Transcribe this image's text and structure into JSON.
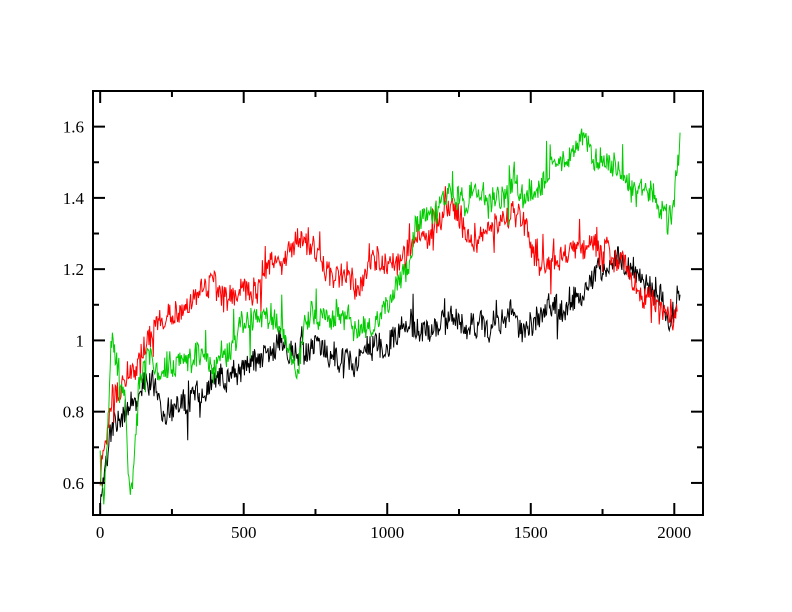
{
  "figure": {
    "background_color": "#ffffff",
    "frame_color": "#000000"
  },
  "chart_data": {
    "type": "line",
    "title": "",
    "xlabel": "",
    "ylabel": "",
    "grid": false,
    "legend": "none",
    "frame": "box-with-inward-ticks-all-sides",
    "x_range": [
      -25,
      2100
    ],
    "y_range": [
      0.51,
      1.7
    ],
    "x_major_ticks": [
      0,
      500,
      1000,
      1500,
      2000
    ],
    "x_major_tick_labels": [
      "0",
      "500",
      "1000",
      "1500",
      "2000"
    ],
    "x_minor_ticks": [
      250,
      750,
      1250,
      1750
    ],
    "y_major_ticks": [
      0.6,
      0.8,
      1.0,
      1.2,
      1.4,
      1.6
    ],
    "y_major_tick_labels": [
      "0.6",
      "0.8",
      "1",
      "1.2",
      "1.4",
      "1.6"
    ],
    "y_minor_ticks": [
      0.7,
      0.9,
      1.1,
      1.3,
      1.5
    ],
    "noise_note": "each series is a very noisy trace; trend anchors below give the midline, noise params reproduce the jitter band of roughly +/-0.05",
    "series": [
      {
        "name": "series-black",
        "color": "#000000",
        "x_start": 0,
        "x_end": 2020,
        "x_step": 2.5,
        "noise_seed": 11,
        "noise": {
          "white": 0.065,
          "walk_gain": 0.022,
          "walk_decay": 0.96,
          "spike_prob": 0.05,
          "spike_amp": 0.16
        },
        "trend": [
          [
            0,
            0.52
          ],
          [
            15,
            0.66
          ],
          [
            40,
            0.76
          ],
          [
            80,
            0.8
          ],
          [
            120,
            0.84
          ],
          [
            160,
            0.9
          ],
          [
            190,
            0.86
          ],
          [
            230,
            0.8
          ],
          [
            270,
            0.83
          ],
          [
            310,
            0.87
          ],
          [
            350,
            0.88
          ],
          [
            400,
            0.91
          ],
          [
            450,
            0.93
          ],
          [
            500,
            0.95
          ],
          [
            550,
            0.96
          ],
          [
            600,
            0.97
          ],
          [
            650,
            1.0
          ],
          [
            700,
            0.99
          ],
          [
            750,
            0.97
          ],
          [
            800,
            0.96
          ],
          [
            850,
            0.92
          ],
          [
            880,
            0.9
          ],
          [
            920,
            0.95
          ],
          [
            960,
            0.97
          ],
          [
            1000,
            0.96
          ],
          [
            1040,
            1.0
          ],
          [
            1080,
            1.04
          ],
          [
            1120,
            1.03
          ],
          [
            1160,
            1.02
          ],
          [
            1200,
            1.05
          ],
          [
            1240,
            1.06
          ],
          [
            1280,
            1.03
          ],
          [
            1320,
            1.06
          ],
          [
            1360,
            1.05
          ],
          [
            1400,
            1.04
          ],
          [
            1440,
            1.07
          ],
          [
            1480,
            1.06
          ],
          [
            1520,
            1.05
          ],
          [
            1560,
            1.08
          ],
          [
            1600,
            1.09
          ],
          [
            1640,
            1.1
          ],
          [
            1680,
            1.12
          ],
          [
            1720,
            1.16
          ],
          [
            1760,
            1.2
          ],
          [
            1800,
            1.22
          ],
          [
            1840,
            1.23
          ],
          [
            1880,
            1.18
          ],
          [
            1920,
            1.12
          ],
          [
            1960,
            1.06
          ],
          [
            1990,
            1.04
          ],
          [
            2010,
            1.1
          ],
          [
            2020,
            1.13
          ]
        ]
      },
      {
        "name": "series-red",
        "color": "#ff0000",
        "x_start": 0,
        "x_end": 2012,
        "x_step": 2.5,
        "noise_seed": 23,
        "noise": {
          "white": 0.065,
          "walk_gain": 0.022,
          "walk_decay": 0.96,
          "spike_prob": 0.05,
          "spike_amp": 0.16
        },
        "trend": [
          [
            0,
            0.63
          ],
          [
            15,
            0.72
          ],
          [
            40,
            0.82
          ],
          [
            80,
            0.86
          ],
          [
            120,
            0.92
          ],
          [
            160,
            1.0
          ],
          [
            200,
            1.07
          ],
          [
            240,
            1.1
          ],
          [
            280,
            1.09
          ],
          [
            320,
            1.11
          ],
          [
            360,
            1.12
          ],
          [
            400,
            1.14
          ],
          [
            440,
            1.12
          ],
          [
            480,
            1.13
          ],
          [
            520,
            1.13
          ],
          [
            560,
            1.15
          ],
          [
            600,
            1.18
          ],
          [
            640,
            1.22
          ],
          [
            680,
            1.28
          ],
          [
            720,
            1.3
          ],
          [
            750,
            1.27
          ],
          [
            780,
            1.21
          ],
          [
            820,
            1.18
          ],
          [
            860,
            1.18
          ],
          [
            900,
            1.16
          ],
          [
            940,
            1.21
          ],
          [
            980,
            1.19
          ],
          [
            1020,
            1.21
          ],
          [
            1060,
            1.25
          ],
          [
            1100,
            1.27
          ],
          [
            1140,
            1.3
          ],
          [
            1180,
            1.34
          ],
          [
            1220,
            1.39
          ],
          [
            1250,
            1.35
          ],
          [
            1290,
            1.29
          ],
          [
            1330,
            1.3
          ],
          [
            1370,
            1.31
          ],
          [
            1410,
            1.35
          ],
          [
            1440,
            1.36
          ],
          [
            1470,
            1.3
          ],
          [
            1510,
            1.26
          ],
          [
            1550,
            1.22
          ],
          [
            1590,
            1.2
          ],
          [
            1630,
            1.22
          ],
          [
            1670,
            1.24
          ],
          [
            1710,
            1.25
          ],
          [
            1750,
            1.26
          ],
          [
            1790,
            1.23
          ],
          [
            1830,
            1.2
          ],
          [
            1870,
            1.17
          ],
          [
            1910,
            1.12
          ],
          [
            1950,
            1.07
          ],
          [
            1980,
            1.04
          ],
          [
            2000,
            1.06
          ],
          [
            2012,
            1.08
          ]
        ]
      },
      {
        "name": "series-green",
        "color": "#00cc00",
        "x_start": 0,
        "x_end": 2020,
        "x_step": 2.5,
        "noise_seed": 37,
        "noise": {
          "white": 0.065,
          "walk_gain": 0.022,
          "walk_decay": 0.96,
          "spike_prob": 0.05,
          "spike_amp": 0.16
        },
        "trend": [
          [
            0,
            0.62
          ],
          [
            12,
            0.53
          ],
          [
            25,
            0.7
          ],
          [
            38,
            1.02
          ],
          [
            50,
            0.98
          ],
          [
            65,
            0.9
          ],
          [
            85,
            0.88
          ],
          [
            100,
            0.66
          ],
          [
            112,
            0.6
          ],
          [
            130,
            0.85
          ],
          [
            155,
            0.92
          ],
          [
            190,
            0.94
          ],
          [
            230,
            0.92
          ],
          [
            270,
            0.9
          ],
          [
            310,
            0.93
          ],
          [
            350,
            0.96
          ],
          [
            390,
            0.89
          ],
          [
            430,
            0.94
          ],
          [
            470,
            0.99
          ],
          [
            510,
            1.03
          ],
          [
            550,
            1.06
          ],
          [
            590,
            1.07
          ],
          [
            630,
            1.05
          ],
          [
            670,
            0.97
          ],
          [
            690,
            0.93
          ],
          [
            710,
            1.03
          ],
          [
            740,
            1.07
          ],
          [
            780,
            1.06
          ],
          [
            820,
            1.04
          ],
          [
            860,
            1.05
          ],
          [
            900,
            1.02
          ],
          [
            940,
            1.0
          ],
          [
            980,
            1.05
          ],
          [
            1010,
            1.06
          ],
          [
            1040,
            1.12
          ],
          [
            1070,
            1.2
          ],
          [
            1100,
            1.28
          ],
          [
            1130,
            1.33
          ],
          [
            1160,
            1.37
          ],
          [
            1200,
            1.4
          ],
          [
            1240,
            1.41
          ],
          [
            1270,
            1.37
          ],
          [
            1300,
            1.45
          ],
          [
            1330,
            1.41
          ],
          [
            1360,
            1.37
          ],
          [
            1400,
            1.4
          ],
          [
            1440,
            1.42
          ],
          [
            1480,
            1.39
          ],
          [
            1520,
            1.42
          ],
          [
            1560,
            1.47
          ],
          [
            1600,
            1.5
          ],
          [
            1640,
            1.53
          ],
          [
            1680,
            1.55
          ],
          [
            1720,
            1.5
          ],
          [
            1760,
            1.47
          ],
          [
            1800,
            1.5
          ],
          [
            1840,
            1.45
          ],
          [
            1880,
            1.42
          ],
          [
            1920,
            1.4
          ],
          [
            1960,
            1.37
          ],
          [
            1990,
            1.36
          ],
          [
            2005,
            1.45
          ],
          [
            2020,
            1.56
          ]
        ]
      }
    ]
  }
}
